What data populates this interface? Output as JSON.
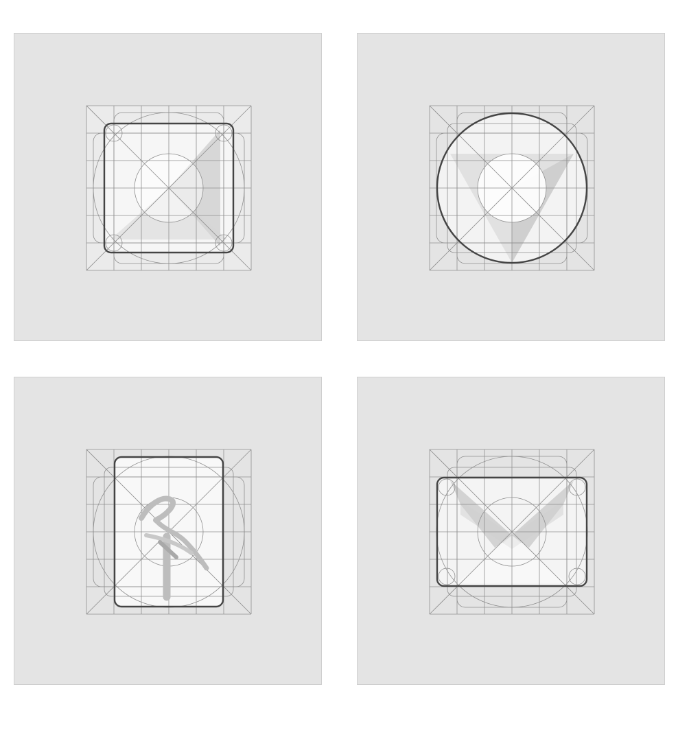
{
  "panels": [
    {
      "id": "square",
      "shape": "rounded-square"
    },
    {
      "id": "circle",
      "shape": "circle"
    },
    {
      "id": "portrait",
      "shape": "portrait-rectangle",
      "glyph": "crane-bird-icon"
    },
    {
      "id": "landscape",
      "shape": "landscape-rectangle"
    }
  ],
  "colors": {
    "panel_background": "#e4e4e4",
    "panel_border": "#cfcfcf",
    "guide_line": "#8e8e8e",
    "key_outline": "#444444",
    "highlight_fill": "#ffffff",
    "shade_fill": "#bdbdbd"
  }
}
